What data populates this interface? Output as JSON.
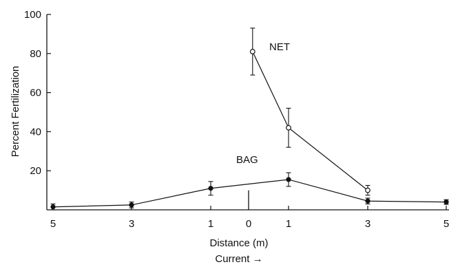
{
  "chart_data": {
    "type": "line",
    "title": "",
    "xlabel": "Distance (m)",
    "xlabel2": "Current →",
    "ylabel": "Percent Fertilization",
    "ylim": [
      0,
      100
    ],
    "yticks": [
      20,
      40,
      60,
      80,
      100
    ],
    "x_tick_labels": [
      "5",
      "3",
      "1",
      "0",
      "1",
      "3",
      "5"
    ],
    "x_tick_positions": [
      -5,
      -3,
      -1,
      0,
      1,
      3,
      5
    ],
    "grid": false,
    "legend": "none",
    "center_marker_x": 0,
    "center_marker_y": [
      0,
      10
    ],
    "series": [
      {
        "name": "NET",
        "marker": "open-circle",
        "color": "#111111",
        "x": [
          0.1,
          1,
          3
        ],
        "y": [
          81,
          42,
          10
        ],
        "err": [
          12,
          10,
          2.5
        ]
      },
      {
        "name": "BAG",
        "marker": "filled-circle",
        "color": "#111111",
        "x": [
          -5,
          -3,
          -1,
          1,
          3,
          5
        ],
        "y": [
          1.5,
          2.5,
          11,
          15.5,
          4.5,
          4
        ],
        "err": [
          1.5,
          1.5,
          3.5,
          3.5,
          1.5,
          1.2
        ]
      }
    ]
  }
}
